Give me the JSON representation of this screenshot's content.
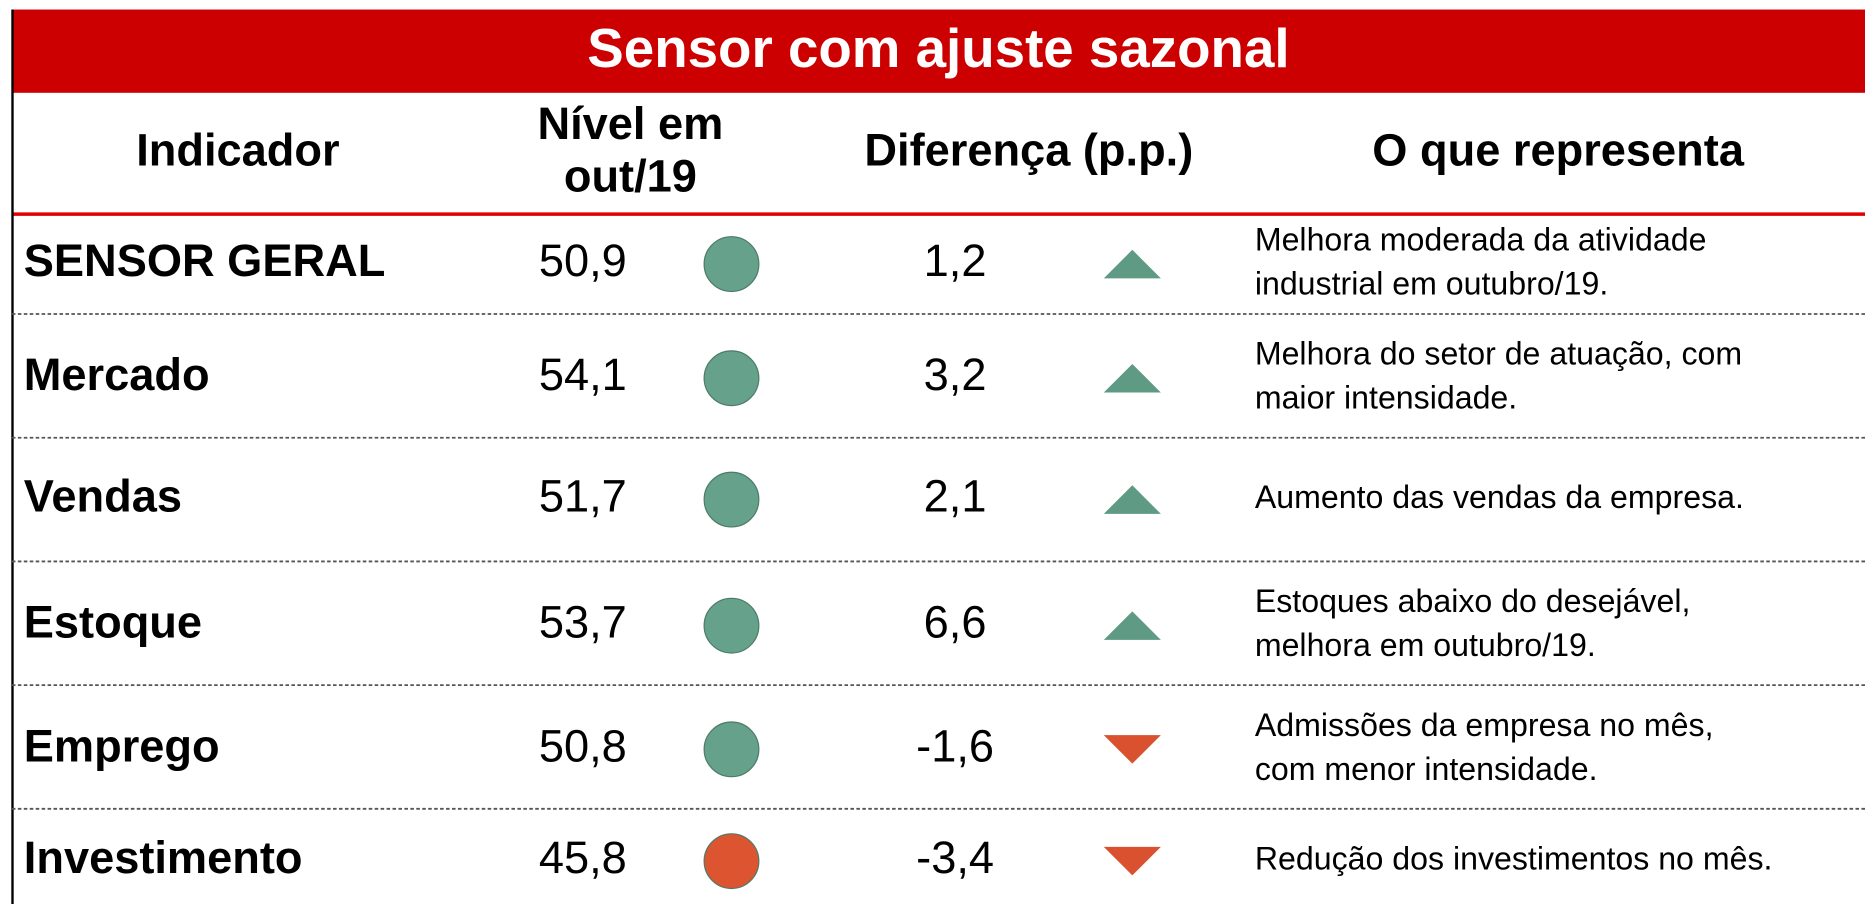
{
  "header": {
    "title": "Sensor com ajuste sazonal"
  },
  "table": {
    "columns": [
      "Indicador",
      [
        "Nível em",
        "out/19"
      ],
      "Diferença (p.p.)",
      "O que representa"
    ],
    "rows": [
      {
        "indicator": "SENSOR GERAL",
        "level": "50,9",
        "level_color": "#66a18b",
        "difference": "1,2",
        "trend": "up",
        "trend_color": "#5e9a84",
        "description": [
          "Melhora moderada da atividade",
          "industrial em outubro/19."
        ]
      },
      {
        "indicator": "Mercado",
        "level": "54,1",
        "level_color": "#66a18b",
        "difference": "3,2",
        "trend": "up",
        "trend_color": "#5e9a84",
        "description": [
          "Melhora do setor de atuação, com",
          "maior intensidade."
        ]
      },
      {
        "indicator": "Vendas",
        "level": "51,7",
        "level_color": "#66a18b",
        "difference": "2,1",
        "trend": "up",
        "trend_color": "#5e9a84",
        "description": [
          "Aumento das vendas da empresa."
        ]
      },
      {
        "indicator": "Estoque",
        "level": "53,7",
        "level_color": "#66a18b",
        "difference": "6,6",
        "trend": "up",
        "trend_color": "#5e9a84",
        "description": [
          "Estoques abaixo do desejável,",
          "melhora em outubro/19."
        ]
      },
      {
        "indicator": "Emprego",
        "level": "50,8",
        "level_color": "#66a18b",
        "difference": "-1,6",
        "trend": "down",
        "trend_color": "#d9512e",
        "description": [
          "Admissões da empresa no mês,",
          "com menor intensidade."
        ]
      },
      {
        "indicator": "Investimento",
        "level": "45,8",
        "level_color": "#dc5530",
        "difference": "-3,4",
        "trend": "down",
        "trend_color": "#d9512e",
        "description": [
          "Redução dos investimentos no mês."
        ]
      }
    ]
  }
}
